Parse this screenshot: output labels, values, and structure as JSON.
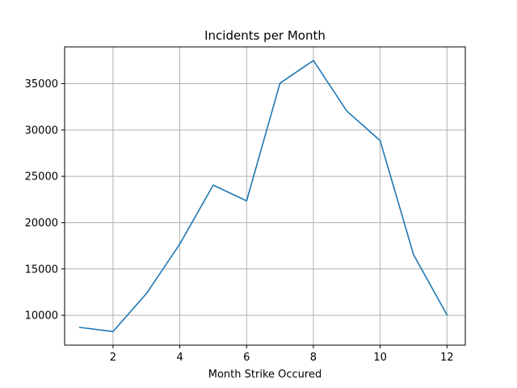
{
  "chart_data": {
    "type": "line",
    "title": "Incidents per Month",
    "xlabel": "Month Strike Occured",
    "ylabel": "",
    "x": [
      1,
      2,
      3,
      4,
      5,
      6,
      7,
      8,
      9,
      10,
      11,
      12
    ],
    "series": [
      {
        "values": [
          8700,
          8250,
          12350,
          17700,
          24050,
          22350,
          35050,
          37500,
          32050,
          28850,
          16550,
          10050
        ],
        "color": "#1f77b4"
      }
    ],
    "xlim": [
      0.55,
      12.55
    ],
    "ylim": [
      6780,
      38970
    ],
    "xticks": [
      2,
      4,
      6,
      8,
      10,
      12
    ],
    "yticks": [
      10000,
      15000,
      20000,
      25000,
      30000,
      35000
    ],
    "grid": true
  }
}
